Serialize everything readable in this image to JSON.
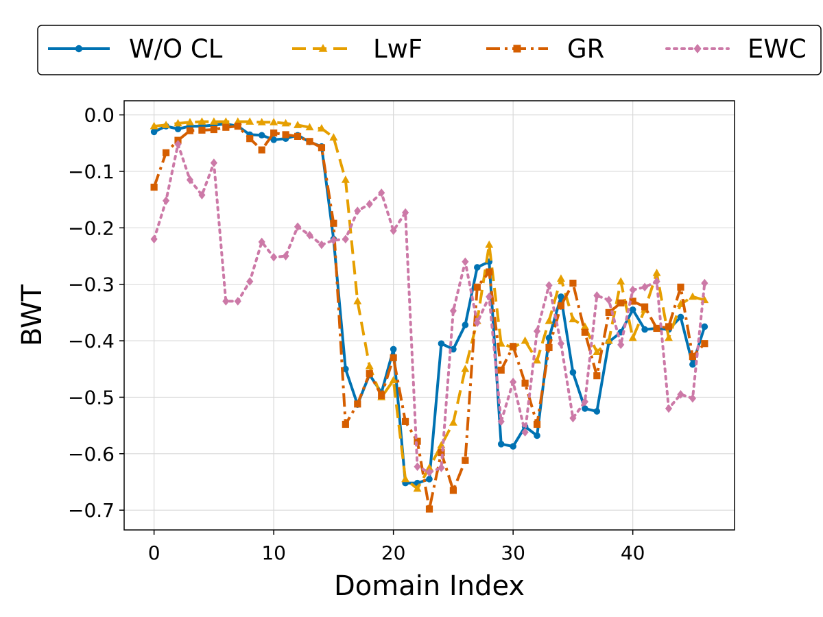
{
  "chart_data": {
    "type": "line",
    "xlabel": "Domain Index",
    "ylabel": "BWT",
    "xlim": [
      -2.5,
      48.5
    ],
    "ylim": [
      -0.735,
      0.025
    ],
    "x_ticks": [
      0,
      10,
      20,
      30,
      40
    ],
    "y_ticks": [
      0.0,
      -0.1,
      -0.2,
      -0.3,
      -0.4,
      -0.5,
      -0.6,
      -0.7
    ],
    "x_tick_labels": [
      "0",
      "10",
      "20",
      "30",
      "40"
    ],
    "y_tick_labels": [
      "0.0",
      "−0.1",
      "−0.2",
      "−0.3",
      "−0.4",
      "−0.5",
      "−0.6",
      "−0.7"
    ],
    "grid": true,
    "legend_position": "top-center, outside plot",
    "x": [
      0,
      1,
      2,
      3,
      4,
      5,
      6,
      7,
      8,
      9,
      10,
      11,
      12,
      13,
      14,
      15,
      16,
      17,
      18,
      19,
      20,
      21,
      22,
      23,
      24,
      25,
      26,
      27,
      28,
      29,
      30,
      31,
      32,
      33,
      34,
      35,
      36,
      37,
      38,
      39,
      40,
      41,
      42,
      43,
      44,
      45,
      46
    ],
    "series": [
      {
        "name": "W/O CL",
        "color": "#0072b2",
        "dash": "solid",
        "marker": "circle",
        "values": [
          -0.03,
          -0.02,
          -0.025,
          -0.02,
          -0.02,
          -0.018,
          -0.016,
          -0.02,
          -0.035,
          -0.036,
          -0.044,
          -0.042,
          -0.036,
          -0.048,
          -0.056,
          -0.22,
          -0.45,
          -0.513,
          -0.46,
          -0.492,
          -0.415,
          -0.652,
          -0.652,
          -0.645,
          -0.405,
          -0.415,
          -0.372,
          -0.27,
          -0.26,
          -0.583,
          -0.587,
          -0.552,
          -0.568,
          -0.395,
          -0.322,
          -0.456,
          -0.52,
          -0.525,
          -0.402,
          -0.385,
          -0.345,
          -0.38,
          -0.378,
          -0.38,
          -0.358,
          -0.442,
          -0.375
        ]
      },
      {
        "name": "LwF",
        "color": "#e69f00",
        "dash": "dashed",
        "marker": "triangle",
        "values": [
          -0.02,
          -0.018,
          -0.015,
          -0.013,
          -0.012,
          -0.012,
          -0.012,
          -0.012,
          -0.012,
          -0.013,
          -0.013,
          -0.015,
          -0.018,
          -0.022,
          -0.024,
          -0.04,
          -0.115,
          -0.33,
          -0.445,
          -0.5,
          -0.47,
          -0.645,
          -0.662,
          -0.625,
          -0.585,
          -0.545,
          -0.45,
          -0.365,
          -0.23,
          -0.405,
          -0.412,
          -0.4,
          -0.435,
          -0.365,
          -0.29,
          -0.362,
          -0.375,
          -0.42,
          -0.4,
          -0.295,
          -0.395,
          -0.345,
          -0.28,
          -0.395,
          -0.335,
          -0.322,
          -0.328
        ]
      },
      {
        "name": "GR",
        "color": "#d55e00",
        "dash": "dashdot",
        "marker": "square",
        "values": [
          -0.128,
          -0.067,
          -0.045,
          -0.028,
          -0.027,
          -0.026,
          -0.022,
          -0.02,
          -0.042,
          -0.062,
          -0.032,
          -0.035,
          -0.038,
          -0.047,
          -0.058,
          -0.192,
          -0.548,
          -0.512,
          -0.458,
          -0.497,
          -0.43,
          -0.543,
          -0.578,
          -0.698,
          -0.598,
          -0.665,
          -0.612,
          -0.305,
          -0.278,
          -0.452,
          -0.41,
          -0.475,
          -0.548,
          -0.412,
          -0.338,
          -0.298,
          -0.385,
          -0.462,
          -0.35,
          -0.333,
          -0.33,
          -0.34,
          -0.378,
          -0.375,
          -0.305,
          -0.428,
          -0.405
        ]
      },
      {
        "name": "EWC",
        "color": "#cc79a7",
        "dash": "dotted",
        "marker": "diamond",
        "values": [
          -0.22,
          -0.152,
          -0.052,
          -0.115,
          -0.142,
          -0.085,
          -0.33,
          -0.33,
          -0.295,
          -0.225,
          -0.252,
          -0.25,
          -0.198,
          -0.213,
          -0.23,
          -0.222,
          -0.22,
          -0.17,
          -0.158,
          -0.138,
          -0.205,
          -0.173,
          -0.623,
          -0.633,
          -0.625,
          -0.347,
          -0.26,
          -0.368,
          -0.322,
          -0.543,
          -0.473,
          -0.562,
          -0.383,
          -0.302,
          -0.405,
          -0.537,
          -0.508,
          -0.32,
          -0.328,
          -0.407,
          -0.31,
          -0.305,
          -0.295,
          -0.52,
          -0.495,
          -0.502,
          -0.298
        ]
      }
    ]
  }
}
